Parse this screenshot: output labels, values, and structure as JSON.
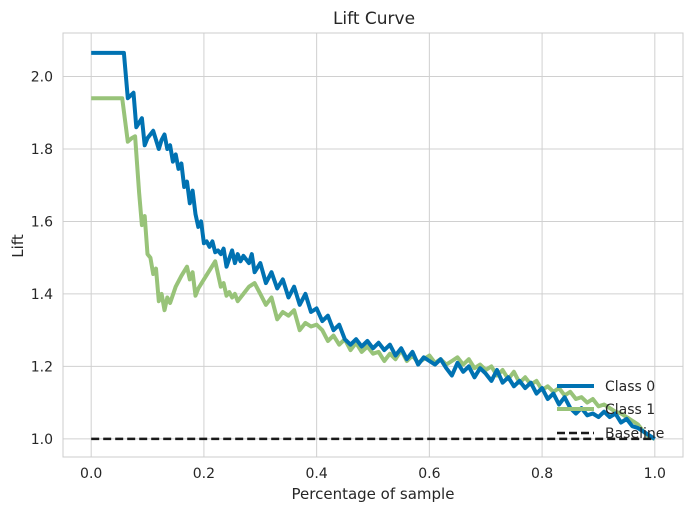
{
  "chart_data": {
    "type": "line",
    "title": "Lift Curve",
    "xlabel": "Percentage of sample",
    "ylabel": "Lift",
    "xlim": [
      -0.05,
      1.05
    ],
    "ylim": [
      0.95,
      2.12
    ],
    "xticks": [
      0.0,
      0.2,
      0.4,
      0.6,
      0.8,
      1.0
    ],
    "xtick_labels": [
      "0.0",
      "0.2",
      "0.4",
      "0.6",
      "0.8",
      "1.0"
    ],
    "yticks": [
      1.0,
      1.2,
      1.4,
      1.6,
      1.8,
      2.0
    ],
    "ytick_labels": [
      "1.0",
      "1.2",
      "1.4",
      "1.6",
      "1.8",
      "2.0"
    ],
    "grid": true,
    "legend_position": "bottom-right",
    "colors": {
      "class0": "#0072b2",
      "class1": "#98c379",
      "baseline": "#1a1a1a",
      "grid": "#d0d0d0",
      "frame": "#cccccc",
      "background": "#ffffff"
    },
    "series": [
      {
        "name": "Class 0",
        "line_style": "solid",
        "x": [
          0.0,
          0.055,
          0.058,
          0.065,
          0.075,
          0.08,
          0.09,
          0.095,
          0.1,
          0.11,
          0.12,
          0.125,
          0.13,
          0.135,
          0.14,
          0.145,
          0.15,
          0.155,
          0.16,
          0.165,
          0.17,
          0.175,
          0.18,
          0.185,
          0.19,
          0.195,
          0.2,
          0.205,
          0.21,
          0.215,
          0.22,
          0.225,
          0.23,
          0.235,
          0.24,
          0.25,
          0.255,
          0.26,
          0.265,
          0.27,
          0.28,
          0.285,
          0.29,
          0.3,
          0.31,
          0.32,
          0.33,
          0.34,
          0.35,
          0.36,
          0.37,
          0.38,
          0.39,
          0.4,
          0.41,
          0.42,
          0.43,
          0.44,
          0.45,
          0.46,
          0.47,
          0.48,
          0.49,
          0.5,
          0.51,
          0.52,
          0.53,
          0.54,
          0.55,
          0.56,
          0.57,
          0.58,
          0.59,
          0.6,
          0.61,
          0.62,
          0.63,
          0.64,
          0.65,
          0.66,
          0.67,
          0.68,
          0.69,
          0.7,
          0.71,
          0.72,
          0.73,
          0.74,
          0.75,
          0.76,
          0.77,
          0.78,
          0.79,
          0.8,
          0.81,
          0.82,
          0.83,
          0.84,
          0.85,
          0.86,
          0.87,
          0.88,
          0.89,
          0.9,
          0.91,
          0.92,
          0.93,
          0.94,
          0.95,
          0.96,
          0.97,
          0.98,
          0.99,
          1.0
        ],
        "y": [
          2.065,
          2.065,
          2.065,
          1.94,
          1.955,
          1.86,
          1.885,
          1.81,
          1.83,
          1.85,
          1.8,
          1.825,
          1.84,
          1.8,
          1.81,
          1.765,
          1.785,
          1.745,
          1.76,
          1.695,
          1.71,
          1.65,
          1.685,
          1.62,
          1.585,
          1.6,
          1.54,
          1.545,
          1.53,
          1.545,
          1.515,
          1.52,
          1.51,
          1.525,
          1.475,
          1.52,
          1.485,
          1.51,
          1.49,
          1.505,
          1.485,
          1.51,
          1.46,
          1.485,
          1.43,
          1.46,
          1.415,
          1.44,
          1.39,
          1.42,
          1.37,
          1.4,
          1.35,
          1.36,
          1.325,
          1.34,
          1.3,
          1.315,
          1.275,
          1.26,
          1.275,
          1.255,
          1.27,
          1.25,
          1.265,
          1.245,
          1.26,
          1.23,
          1.25,
          1.22,
          1.24,
          1.205,
          1.225,
          1.215,
          1.205,
          1.22,
          1.195,
          1.175,
          1.21,
          1.185,
          1.2,
          1.17,
          1.195,
          1.18,
          1.16,
          1.19,
          1.155,
          1.17,
          1.145,
          1.16,
          1.14,
          1.155,
          1.125,
          1.14,
          1.11,
          1.125,
          1.095,
          1.115,
          1.085,
          1.07,
          1.085,
          1.065,
          1.07,
          1.06,
          1.075,
          1.06,
          1.07,
          1.045,
          1.055,
          1.035,
          1.03,
          1.02,
          1.01,
          1.0
        ]
      },
      {
        "name": "Class 1",
        "line_style": "solid",
        "x": [
          0.0,
          0.055,
          0.065,
          0.072,
          0.078,
          0.085,
          0.09,
          0.095,
          0.1,
          0.105,
          0.11,
          0.115,
          0.12,
          0.125,
          0.13,
          0.135,
          0.14,
          0.15,
          0.16,
          0.17,
          0.175,
          0.18,
          0.185,
          0.19,
          0.2,
          0.21,
          0.22,
          0.23,
          0.235,
          0.24,
          0.245,
          0.25,
          0.255,
          0.26,
          0.27,
          0.28,
          0.29,
          0.3,
          0.31,
          0.32,
          0.33,
          0.34,
          0.35,
          0.36,
          0.37,
          0.38,
          0.39,
          0.4,
          0.41,
          0.42,
          0.43,
          0.44,
          0.45,
          0.46,
          0.47,
          0.48,
          0.49,
          0.5,
          0.51,
          0.52,
          0.53,
          0.54,
          0.55,
          0.56,
          0.57,
          0.58,
          0.59,
          0.6,
          0.61,
          0.62,
          0.63,
          0.64,
          0.65,
          0.66,
          0.67,
          0.68,
          0.69,
          0.7,
          0.71,
          0.72,
          0.73,
          0.74,
          0.75,
          0.76,
          0.77,
          0.78,
          0.79,
          0.8,
          0.81,
          0.82,
          0.83,
          0.84,
          0.85,
          0.86,
          0.87,
          0.88,
          0.89,
          0.9,
          0.91,
          0.92,
          0.93,
          0.94,
          0.95,
          0.96,
          0.97,
          0.98,
          0.99,
          1.0
        ],
        "y": [
          1.94,
          1.94,
          1.82,
          1.83,
          1.835,
          1.68,
          1.59,
          1.615,
          1.51,
          1.5,
          1.455,
          1.47,
          1.38,
          1.4,
          1.355,
          1.39,
          1.375,
          1.42,
          1.45,
          1.475,
          1.44,
          1.46,
          1.395,
          1.415,
          1.44,
          1.465,
          1.49,
          1.42,
          1.43,
          1.395,
          1.405,
          1.39,
          1.4,
          1.38,
          1.4,
          1.42,
          1.43,
          1.4,
          1.37,
          1.39,
          1.33,
          1.35,
          1.34,
          1.355,
          1.3,
          1.32,
          1.31,
          1.315,
          1.3,
          1.27,
          1.285,
          1.26,
          1.275,
          1.245,
          1.265,
          1.24,
          1.255,
          1.235,
          1.24,
          1.215,
          1.235,
          1.22,
          1.245,
          1.215,
          1.23,
          1.21,
          1.22,
          1.23,
          1.21,
          1.22,
          1.205,
          1.215,
          1.225,
          1.205,
          1.22,
          1.195,
          1.205,
          1.19,
          1.2,
          1.175,
          1.19,
          1.165,
          1.185,
          1.155,
          1.17,
          1.15,
          1.16,
          1.135,
          1.145,
          1.13,
          1.14,
          1.12,
          1.13,
          1.11,
          1.115,
          1.1,
          1.11,
          1.09,
          1.095,
          1.085,
          1.075,
          1.07,
          1.06,
          1.05,
          1.04,
          1.02,
          1.005,
          1.0
        ]
      },
      {
        "name": "Baseline",
        "line_style": "dashed",
        "x": [
          0.0,
          1.0
        ],
        "y": [
          1.0,
          1.0
        ]
      }
    ]
  }
}
